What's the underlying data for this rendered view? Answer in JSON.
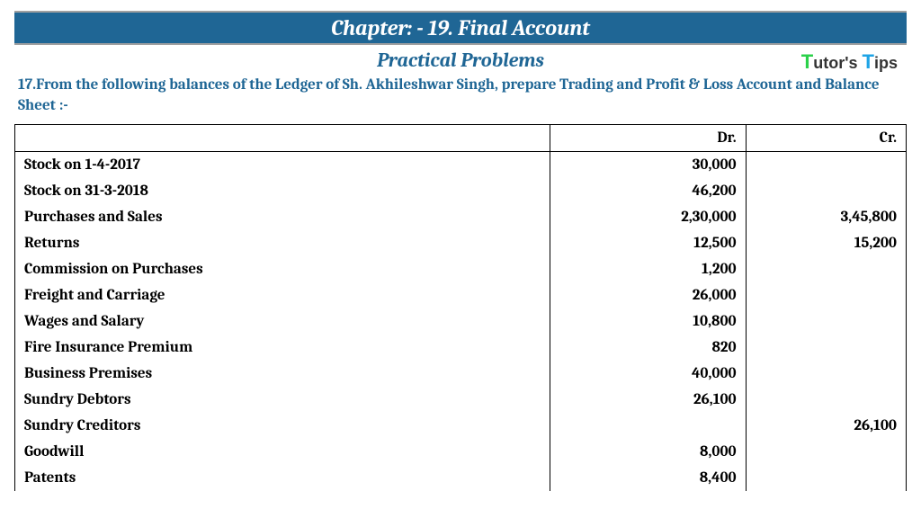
{
  "header": {
    "chapter_title": "Chapter: -  19. Final Account",
    "subtitle": "Practical Problems",
    "logo_parts": {
      "t1": "T",
      "w1": "utor's ",
      "t2": "T",
      "w2": "ips"
    }
  },
  "problem": {
    "text": "17.From the following balances of the Ledger of Sh. Akhileshwar Singh, prepare Trading and Profit & Loss Account and Balance Sheet :-"
  },
  "table": {
    "columns": {
      "desc": "",
      "dr": "Dr.",
      "cr": "Cr."
    },
    "rows": [
      {
        "desc": "Stock on 1-4-2017",
        "dr": "30,000",
        "cr": ""
      },
      {
        "desc": "Stock on 31-3-2018",
        "dr": "46,200",
        "cr": ""
      },
      {
        "desc": "Purchases and Sales",
        "dr": "2,30,000",
        "cr": "3,45,800"
      },
      {
        "desc": "Returns",
        "dr": "12,500",
        "cr": "15,200"
      },
      {
        "desc": "Commission on Purchases",
        "dr": "1,200",
        "cr": ""
      },
      {
        "desc": "Freight and Carriage",
        "dr": "26,000",
        "cr": ""
      },
      {
        "desc": "Wages and Salary",
        "dr": "10,800",
        "cr": ""
      },
      {
        "desc": "Fire Insurance Premium",
        "dr": "820",
        "cr": ""
      },
      {
        "desc": "Business Premises",
        "dr": "40,000",
        "cr": ""
      },
      {
        "desc": "Sundry Debtors",
        "dr": "26,100",
        "cr": ""
      },
      {
        "desc": "Sundry Creditors",
        "dr": "",
        "cr": "26,100"
      },
      {
        "desc": "Goodwill",
        "dr": "8,000",
        "cr": ""
      },
      {
        "desc": "Patents",
        "dr": "8,400",
        "cr": ""
      }
    ]
  },
  "style": {
    "brand_color": "#1f6695",
    "text_color": "#000000",
    "border_color": "#000000",
    "bg_color": "#ffffff",
    "title_fontsize": 24,
    "subtitle_fontsize": 22,
    "problem_fontsize": 17,
    "cell_fontsize": 17,
    "font_family": "Cambria, Georgia, serif"
  }
}
